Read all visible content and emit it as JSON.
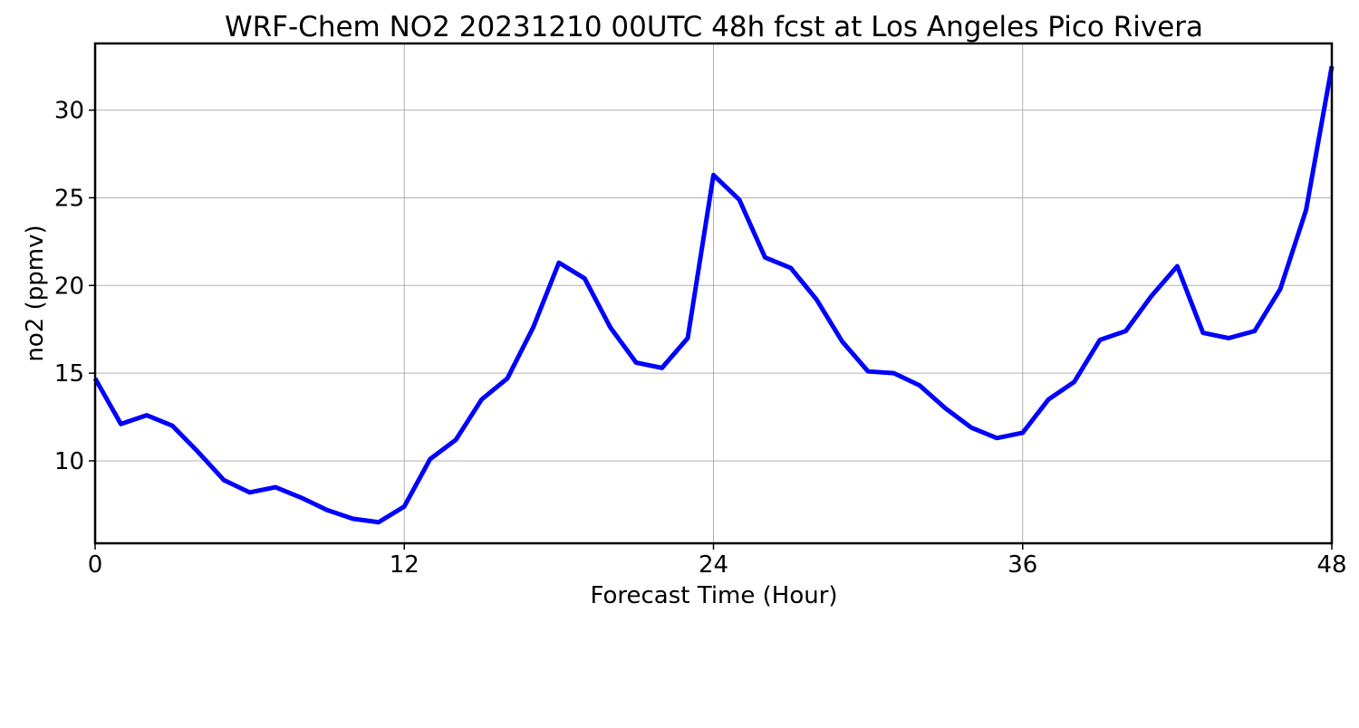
{
  "chart_data": {
    "type": "line",
    "title": "WRF-Chem NO2  20231210 00UTC 48h fcst at Los Angeles Pico Rivera",
    "xlabel": "Forecast Time (Hour)",
    "ylabel": "no2  (ppmv)",
    "xlim": [
      0,
      48
    ],
    "ylim": [
      5.3,
      33.8
    ],
    "x_ticks": [
      0,
      12,
      24,
      36,
      48
    ],
    "y_ticks": [
      10,
      15,
      20,
      25,
      30
    ],
    "grid": true,
    "legend": "none",
    "series": [
      {
        "color": "#0000ff",
        "x": [
          0,
          1,
          2,
          3,
          4,
          5,
          6,
          7,
          8,
          9,
          10,
          11,
          12,
          13,
          14,
          15,
          16,
          17,
          18,
          19,
          20,
          21,
          22,
          23,
          24,
          25,
          26,
          27,
          28,
          29,
          30,
          31,
          32,
          33,
          34,
          35,
          36,
          37,
          38,
          39,
          40,
          41,
          42,
          43,
          44,
          45,
          46,
          47,
          48
        ],
        "values": [
          14.7,
          12.1,
          12.6,
          12.0,
          10.5,
          8.9,
          8.2,
          8.5,
          7.9,
          7.2,
          6.7,
          6.5,
          7.4,
          10.1,
          11.2,
          13.5,
          14.7,
          17.6,
          21.3,
          20.4,
          17.6,
          15.6,
          15.3,
          17.0,
          26.3,
          24.9,
          21.6,
          21.0,
          19.2,
          16.8,
          15.1,
          15.0,
          14.3,
          13.0,
          11.9,
          11.3,
          11.6,
          13.5,
          14.5,
          16.9,
          17.4,
          19.4,
          21.1,
          17.3,
          17.0,
          17.4,
          19.8,
          24.3,
          32.5
        ]
      }
    ]
  }
}
